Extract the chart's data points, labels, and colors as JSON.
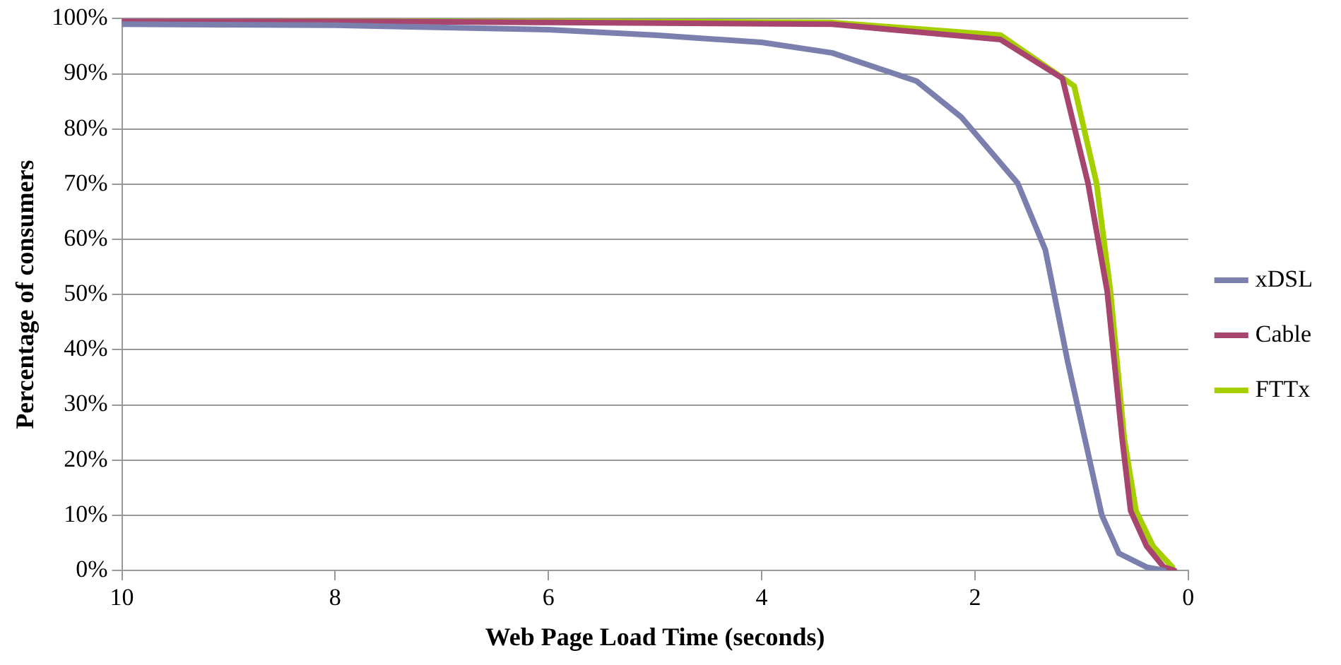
{
  "chart_data": {
    "type": "line",
    "xlabel": "Web Page Load Time (seconds)",
    "ylabel": "Percentage of consumers",
    "xlim": [
      10,
      0
    ],
    "xticks": [
      10,
      8,
      6,
      4,
      2,
      0
    ],
    "ylim": [
      0,
      100
    ],
    "yticks": [
      {
        "value": 0,
        "label": "0%"
      },
      {
        "value": 10,
        "label": "10%"
      },
      {
        "value": 20,
        "label": "20%"
      },
      {
        "value": 30,
        "label": "30%"
      },
      {
        "value": 40,
        "label": "40%"
      },
      {
        "value": 50,
        "label": "50%"
      },
      {
        "value": 60,
        "label": "60%"
      },
      {
        "value": 70,
        "label": "70%"
      },
      {
        "value": 80,
        "label": "80%"
      },
      {
        "value": 90,
        "label": "90%"
      },
      {
        "value": 100,
        "label": "100%"
      }
    ],
    "grid": "y",
    "legend": "right",
    "marker": "none",
    "line_style": "solid",
    "series": [
      {
        "name": "xDSL",
        "color": "#7b7fae",
        "x": [
          10,
          8,
          6,
          5,
          4,
          3.34,
          2.55,
          2.13,
          1.6,
          1.34,
          1.13,
          0.97,
          0.81,
          0.65,
          0.39,
          0.23
        ],
        "values": [
          99,
          98.8,
          98,
          97,
          95.7,
          93.8,
          88.7,
          82.2,
          70.2,
          58.1,
          37.8,
          23.9,
          10,
          3.1,
          0.6,
          0
        ]
      },
      {
        "name": "Cable",
        "color": "#a8456e",
        "x": [
          10,
          8.5,
          6,
          3.34,
          1.76,
          1.18,
          0.94,
          0.76,
          0.62,
          0.54,
          0.39,
          0.23,
          0.13
        ],
        "values": [
          99.6,
          99.6,
          99.3,
          99,
          96.2,
          89.2,
          70.2,
          50.6,
          23.9,
          10.8,
          4.4,
          0.6,
          0
        ]
      },
      {
        "name": "FTTx",
        "color": "#a6cf00",
        "x": [
          8.5,
          6,
          3.34,
          1.76,
          1.07,
          0.86,
          0.73,
          0.6,
          0.49,
          0.33,
          0.15
        ],
        "values": [
          99.8,
          99.6,
          99.3,
          97,
          87.8,
          70.2,
          50.7,
          23.9,
          10.8,
          4.4,
          0.6
        ]
      }
    ]
  }
}
